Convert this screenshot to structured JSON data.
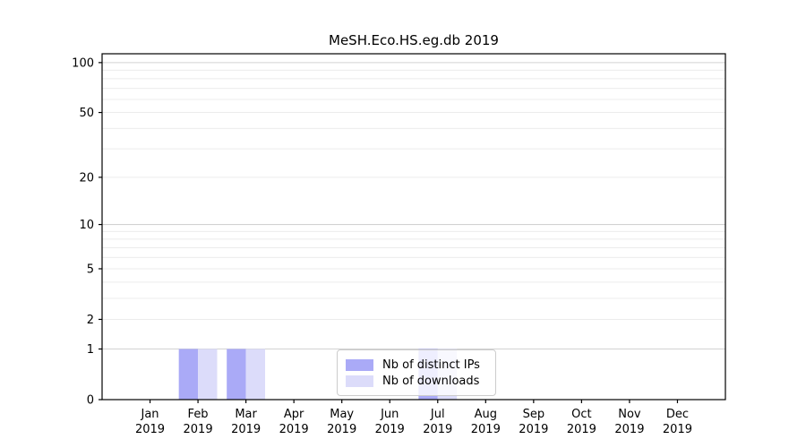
{
  "page": {
    "background": "#ffffff"
  },
  "chart_data": {
    "type": "bar",
    "title": "MeSH.Eco.HS.eg.db 2019",
    "categories": [
      "Jan",
      "Feb",
      "Mar",
      "Apr",
      "May",
      "Jun",
      "Jul",
      "Aug",
      "Sep",
      "Oct",
      "Nov",
      "Dec"
    ],
    "x_ticks": [
      {
        "month": "Jan",
        "year": "2019"
      },
      {
        "month": "Feb",
        "year": "2019"
      },
      {
        "month": "Mar",
        "year": "2019"
      },
      {
        "month": "Apr",
        "year": "2019"
      },
      {
        "month": "May",
        "year": "2019"
      },
      {
        "month": "Jun",
        "year": "2019"
      },
      {
        "month": "Jul",
        "year": "2019"
      },
      {
        "month": "Aug",
        "year": "2019"
      },
      {
        "month": "Sep",
        "year": "2019"
      },
      {
        "month": "Oct",
        "year": "2019"
      },
      {
        "month": "Nov",
        "year": "2019"
      },
      {
        "month": "Dec",
        "year": "2019"
      }
    ],
    "series": [
      {
        "name": "Nb of distinct IPs",
        "color": "#aaaaf7",
        "values": [
          0,
          1,
          1,
          0,
          0,
          0,
          1,
          0,
          0,
          0,
          0,
          0
        ]
      },
      {
        "name": "Nb of downloads",
        "color": "#dcdcfa",
        "values": [
          0,
          1,
          1,
          0,
          0,
          0,
          1,
          0,
          0,
          0,
          0,
          0
        ]
      }
    ],
    "yscale": "log1p",
    "y_ticks": [
      0,
      1,
      2,
      5,
      10,
      20,
      50,
      100
    ],
    "ylim": [
      0,
      113
    ],
    "grid": {
      "minor_values": [
        2,
        3,
        4,
        5,
        6,
        7,
        8,
        9,
        20,
        30,
        40,
        50,
        60,
        70,
        80,
        90
      ],
      "major_values": [
        1,
        10,
        100
      ],
      "minor_color": "#ececec",
      "major_color": "#d2d2d2"
    },
    "legend_position": "bottom-center",
    "axis_color": "#000000"
  }
}
